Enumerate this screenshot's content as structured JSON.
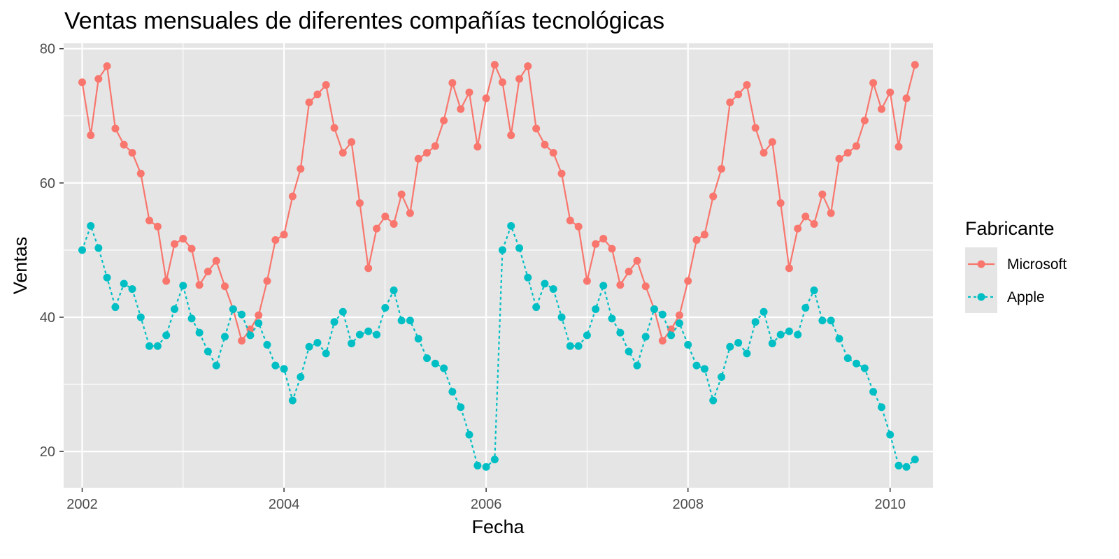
{
  "chart_data": {
    "type": "line",
    "title": "Ventas mensuales de diferentes compañías tecnológicas",
    "xlabel": "Fecha",
    "ylabel": "Ventas",
    "xlim": [
      "2001-10-26",
      "2010-06-05"
    ],
    "ylim": [
      14.6,
      80.8
    ],
    "x_ticks": [
      {
        "date": "2002-01-01",
        "label": "2002"
      },
      {
        "date": "2004-01-01",
        "label": "2004"
      },
      {
        "date": "2006-01-01",
        "label": "2006"
      },
      {
        "date": "2008-01-01",
        "label": "2008"
      },
      {
        "date": "2010-01-01",
        "label": "2010"
      }
    ],
    "y_ticks": [
      20,
      40,
      60,
      80
    ],
    "grid": true,
    "panel_background": "#e5e5e5",
    "legend": {
      "title": "Fabricante",
      "position": "right"
    },
    "x": [
      "2002-01",
      "2002-02",
      "2002-03",
      "2002-04",
      "2002-05",
      "2002-06",
      "2002-07",
      "2002-08",
      "2002-09",
      "2002-10",
      "2002-11",
      "2002-12",
      "2003-01",
      "2003-02",
      "2003-03",
      "2003-04",
      "2003-05",
      "2003-06",
      "2003-07",
      "2003-08",
      "2003-09",
      "2003-10",
      "2003-11",
      "2003-12",
      "2004-01",
      "2004-02",
      "2004-03",
      "2004-04",
      "2004-05",
      "2004-06",
      "2004-07",
      "2004-08",
      "2004-09",
      "2004-10",
      "2004-11",
      "2004-12",
      "2005-01",
      "2005-02",
      "2005-03",
      "2005-04",
      "2005-05",
      "2005-06",
      "2005-07",
      "2005-08",
      "2005-09",
      "2005-10",
      "2005-11",
      "2005-12",
      "2006-01",
      "2006-02",
      "2006-03",
      "2006-04",
      "2006-05",
      "2006-06",
      "2006-07",
      "2006-08",
      "2006-09",
      "2006-10",
      "2006-11",
      "2006-12",
      "2007-01",
      "2007-02",
      "2007-03",
      "2007-04",
      "2007-05",
      "2007-06",
      "2007-07",
      "2007-08",
      "2007-09",
      "2007-10",
      "2007-11",
      "2007-12",
      "2008-01",
      "2008-02",
      "2008-03",
      "2008-04",
      "2008-05",
      "2008-06",
      "2008-07",
      "2008-08",
      "2008-09",
      "2008-10",
      "2008-11",
      "2008-12",
      "2009-01",
      "2009-02",
      "2009-03",
      "2009-04",
      "2009-05",
      "2009-06",
      "2009-07",
      "2009-08",
      "2009-09",
      "2009-10",
      "2009-11",
      "2009-12",
      "2010-01",
      "2010-02",
      "2010-03",
      "2010-04"
    ],
    "series": [
      {
        "name": "Microsoft",
        "color": "#f8766d",
        "line_style": "solid",
        "values": [
          75.0,
          67.1,
          75.5,
          77.4,
          68.1,
          65.7,
          64.5,
          61.4,
          54.4,
          53.5,
          45.4,
          50.9,
          51.7,
          50.2,
          44.8,
          46.8,
          48.4,
          44.6,
          41.2,
          36.5,
          38.2,
          40.3,
          45.4,
          51.5,
          52.3,
          58.0,
          62.1,
          72.0,
          73.2,
          74.6,
          68.2,
          64.5,
          66.1,
          57.0,
          47.3,
          53.2,
          55.0,
          53.9,
          58.3,
          55.5,
          63.6,
          64.5,
          65.5,
          69.3,
          74.9,
          71.0,
          73.5,
          65.4,
          72.6,
          77.6,
          75.0,
          67.1,
          75.5,
          77.4,
          68.1,
          65.7,
          64.5,
          61.4,
          54.4,
          53.5,
          45.4,
          50.9,
          51.7,
          50.2,
          44.8,
          46.8,
          48.4,
          44.6,
          41.2,
          36.5,
          38.2,
          40.3,
          45.4,
          51.5,
          52.3,
          58.0,
          62.1,
          72.0,
          73.2,
          74.6,
          68.2,
          64.5,
          66.1,
          57.0,
          47.3,
          53.2,
          55.0,
          53.9,
          58.3,
          55.5,
          63.6,
          64.5,
          65.5,
          69.3,
          74.9,
          71.0,
          73.5,
          65.4,
          72.6,
          77.6
        ]
      },
      {
        "name": "Apple",
        "color": "#00bfc4",
        "line_style": "dotted",
        "values": [
          50.0,
          53.6,
          50.3,
          45.9,
          41.5,
          45.0,
          44.2,
          40.0,
          35.7,
          35.7,
          37.3,
          41.2,
          44.7,
          39.8,
          37.7,
          34.9,
          32.8,
          37.1,
          41.2,
          40.4,
          37.3,
          39.1,
          35.9,
          32.8,
          32.3,
          27.6,
          31.1,
          35.6,
          36.2,
          34.6,
          39.3,
          40.8,
          36.1,
          37.4,
          37.9,
          37.4,
          41.4,
          44.0,
          39.5,
          39.5,
          36.8,
          33.9,
          33.1,
          32.4,
          28.9,
          26.6,
          22.5,
          17.9,
          17.7,
          18.8,
          50.0,
          53.6,
          50.3,
          45.9,
          41.5,
          45.0,
          44.2,
          40.0,
          35.7,
          35.7,
          37.3,
          41.2,
          44.7,
          39.8,
          37.7,
          34.9,
          32.8,
          37.1,
          41.2,
          40.4,
          37.3,
          39.1,
          35.9,
          32.8,
          32.3,
          27.6,
          31.1,
          35.6,
          36.2,
          34.6,
          39.3,
          40.8,
          36.1,
          37.4,
          37.9,
          37.4,
          41.4,
          44.0,
          39.5,
          39.5,
          36.8,
          33.9,
          33.1,
          32.4,
          28.9,
          26.6,
          22.5,
          17.9,
          17.7,
          18.8
        ]
      }
    ]
  }
}
